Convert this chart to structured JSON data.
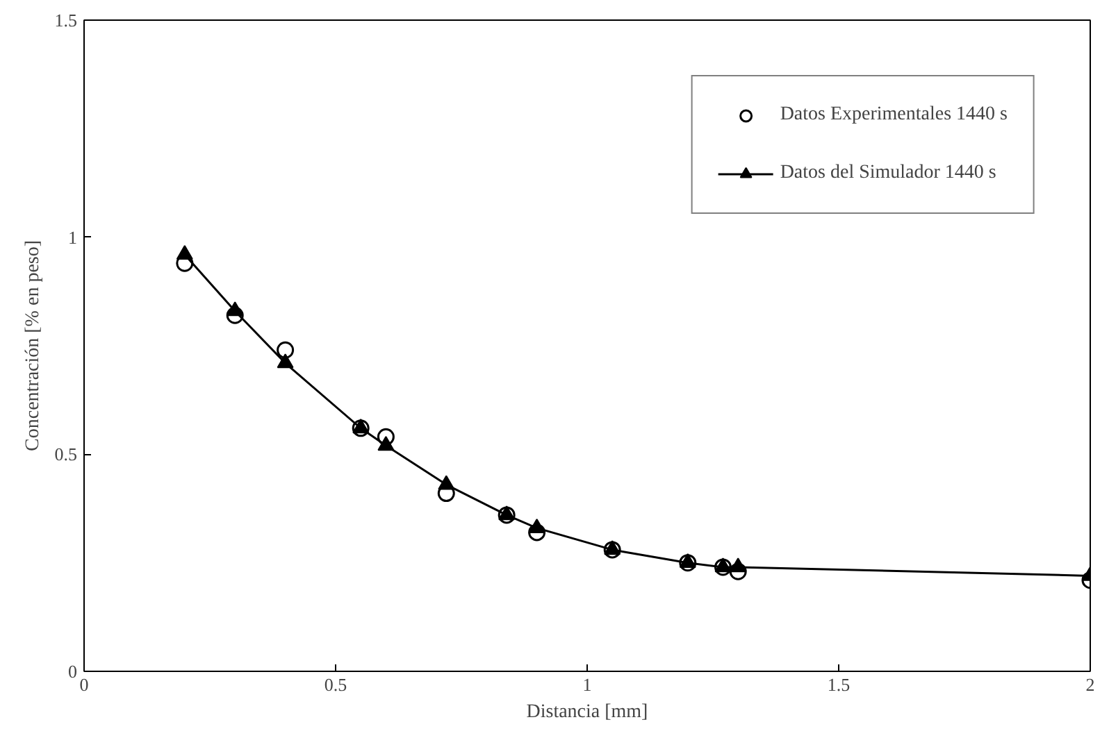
{
  "chart_data": {
    "type": "scatter",
    "xlabel": "Distancia [mm]",
    "ylabel": "Concentración [% en peso]",
    "xlim": [
      0,
      2
    ],
    "ylim": [
      0,
      1.5
    ],
    "xticks": [
      0,
      0.5,
      1,
      1.5,
      2
    ],
    "yticks": [
      0,
      0.5,
      1,
      1.5
    ],
    "grid": false,
    "legend": "top right",
    "series": [
      {
        "name": "Datos Experimentales 1440 s",
        "marker": "circle",
        "color": "#000000",
        "x": [
          0.2,
          0.3,
          0.4,
          0.55,
          0.6,
          0.72,
          0.84,
          0.9,
          1.05,
          1.2,
          1.27,
          1.3,
          2.0
        ],
        "values": [
          0.94,
          0.82,
          0.74,
          0.56,
          0.54,
          0.41,
          0.36,
          0.32,
          0.28,
          0.25,
          0.24,
          0.23,
          0.21
        ]
      },
      {
        "name": "Datos del Simulador 1440 s",
        "type": "line",
        "marker": "triangle",
        "color": "#000000",
        "x": [
          0.2,
          0.3,
          0.4,
          0.55,
          0.6,
          0.72,
          0.84,
          0.9,
          1.05,
          1.2,
          1.27,
          1.3,
          2.0
        ],
        "values": [
          0.96,
          0.83,
          0.71,
          0.56,
          0.52,
          0.43,
          0.36,
          0.33,
          0.28,
          0.25,
          0.24,
          0.24,
          0.22
        ]
      }
    ]
  }
}
